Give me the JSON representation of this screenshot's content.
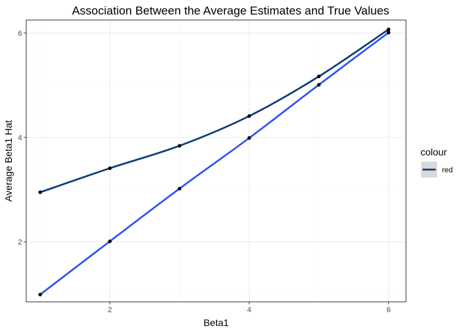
{
  "chart_data": {
    "type": "line",
    "title": "Association Between the Average Estimates and True Values",
    "xlabel": "Beta1",
    "ylabel": "Average Beta1 Hat",
    "xlim": [
      0.8,
      6.25
    ],
    "ylim": [
      0.85,
      6.25
    ],
    "x_ticks": [
      2,
      4,
      6
    ],
    "y_ticks": [
      2,
      4,
      6
    ],
    "grid": true,
    "legend": {
      "title": "colour",
      "position": "right",
      "entries": [
        {
          "label": "red",
          "color": "#0d3a73"
        }
      ]
    },
    "series": [
      {
        "color": "#0d3a73",
        "x": [
          1,
          2,
          3,
          4,
          5,
          6
        ],
        "y": [
          2.95,
          3.41,
          3.84,
          4.41,
          5.17,
          6.07
        ]
      },
      {
        "color": "#3051f5",
        "x": [
          1,
          2,
          3,
          4,
          5,
          6
        ],
        "y": [
          0.99,
          2.01,
          3.02,
          3.99,
          5.01,
          6.01
        ]
      }
    ],
    "colors": {
      "panel_border": "#333333",
      "grid_major": "#ebebeb",
      "grid_minor": "#f5f5f5",
      "point": "#000000",
      "legend_key_bg": "#d9d9d9"
    }
  }
}
